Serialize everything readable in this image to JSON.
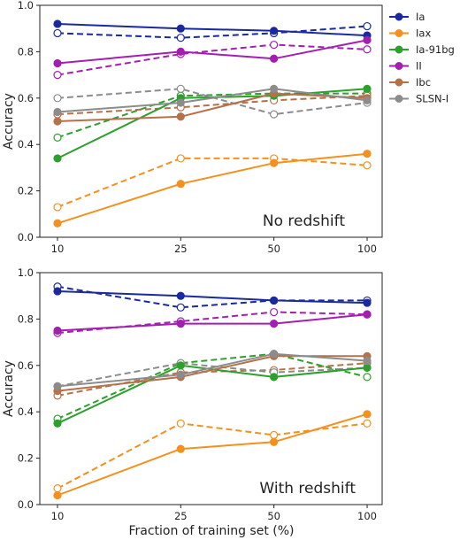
{
  "figure": {
    "xlabel": "Fraction of training set (%)",
    "ylabel": "Accuracy"
  },
  "legend": {
    "placement": "right of top panel",
    "entries": [
      {
        "label": "Ia",
        "color": "#1a2a9e"
      },
      {
        "label": "Iax",
        "color": "#f5901e"
      },
      {
        "label": "Ia-91bg",
        "color": "#2ca02c"
      },
      {
        "label": "II",
        "color": "#a31fb0"
      },
      {
        "label": "Ibc",
        "color": "#b5714a"
      },
      {
        "label": "SLSN-I",
        "color": "#8c8c8c"
      }
    ]
  },
  "chart_data": [
    {
      "type": "line",
      "annotation": "No redshift",
      "x": [
        10,
        25,
        50,
        100
      ],
      "x_tick_labels": [
        "10",
        "25",
        "50",
        "100"
      ],
      "y_tick_labels": [
        "0.0",
        "0.2",
        "0.4",
        "0.6",
        "0.8",
        "1.0"
      ],
      "ylim": [
        0,
        1
      ],
      "xscale": "log",
      "grid": false,
      "series": [
        {
          "name": "Ia",
          "style": "solid",
          "values": [
            0.92,
            0.9,
            0.89,
            0.87
          ]
        },
        {
          "name": "Ia",
          "style": "dashed",
          "values": [
            0.88,
            0.86,
            0.88,
            0.91
          ]
        },
        {
          "name": "Iax",
          "style": "solid",
          "values": [
            0.06,
            0.23,
            0.32,
            0.36
          ]
        },
        {
          "name": "Iax",
          "style": "dashed",
          "values": [
            0.13,
            0.34,
            0.34,
            0.31
          ]
        },
        {
          "name": "Ia-91bg",
          "style": "solid",
          "values": [
            0.34,
            0.6,
            0.61,
            0.64
          ]
        },
        {
          "name": "Ia-91bg",
          "style": "dashed",
          "values": [
            0.43,
            0.61,
            0.62,
            0.62
          ]
        },
        {
          "name": "II",
          "style": "solid",
          "values": [
            0.75,
            0.8,
            0.77,
            0.85
          ]
        },
        {
          "name": "II",
          "style": "dashed",
          "values": [
            0.7,
            0.79,
            0.83,
            0.81
          ]
        },
        {
          "name": "Ibc",
          "style": "solid",
          "values": [
            0.5,
            0.52,
            0.62,
            0.6
          ]
        },
        {
          "name": "Ibc",
          "style": "dashed",
          "values": [
            0.53,
            0.56,
            0.59,
            0.61
          ]
        },
        {
          "name": "SLSN-I",
          "style": "solid",
          "values": [
            0.54,
            0.58,
            0.64,
            0.59
          ]
        },
        {
          "name": "SLSN-I",
          "style": "dashed",
          "values": [
            0.6,
            0.64,
            0.53,
            0.58
          ]
        }
      ]
    },
    {
      "type": "line",
      "annotation": "With redshift",
      "x": [
        10,
        25,
        50,
        100
      ],
      "x_tick_labels": [
        "10",
        "25",
        "50",
        "100"
      ],
      "y_tick_labels": [
        "0.0",
        "0.2",
        "0.4",
        "0.6",
        "0.8",
        "1.0"
      ],
      "ylim": [
        0,
        1
      ],
      "xscale": "log",
      "grid": false,
      "series": [
        {
          "name": "Ia",
          "style": "solid",
          "values": [
            0.92,
            0.9,
            0.88,
            0.87
          ]
        },
        {
          "name": "Ia",
          "style": "dashed",
          "values": [
            0.94,
            0.85,
            0.88,
            0.88
          ]
        },
        {
          "name": "Iax",
          "style": "solid",
          "values": [
            0.04,
            0.24,
            0.27,
            0.39
          ]
        },
        {
          "name": "Iax",
          "style": "dashed",
          "values": [
            0.07,
            0.35,
            0.3,
            0.35
          ]
        },
        {
          "name": "Ia-91bg",
          "style": "solid",
          "values": [
            0.35,
            0.6,
            0.55,
            0.59
          ]
        },
        {
          "name": "Ia-91bg",
          "style": "dashed",
          "values": [
            0.37,
            0.61,
            0.65,
            0.55
          ]
        },
        {
          "name": "II",
          "style": "solid",
          "values": [
            0.75,
            0.78,
            0.78,
            0.82
          ]
        },
        {
          "name": "II",
          "style": "dashed",
          "values": [
            0.74,
            0.79,
            0.83,
            0.82
          ]
        },
        {
          "name": "Ibc",
          "style": "solid",
          "values": [
            0.49,
            0.55,
            0.64,
            0.64
          ]
        },
        {
          "name": "Ibc",
          "style": "dashed",
          "values": [
            0.47,
            0.57,
            0.58,
            0.61
          ]
        },
        {
          "name": "SLSN-I",
          "style": "solid",
          "values": [
            0.51,
            0.56,
            0.65,
            0.62
          ]
        },
        {
          "name": "SLSN-I",
          "style": "dashed",
          "values": [
            0.51,
            0.61,
            0.57,
            0.59
          ]
        }
      ]
    }
  ]
}
